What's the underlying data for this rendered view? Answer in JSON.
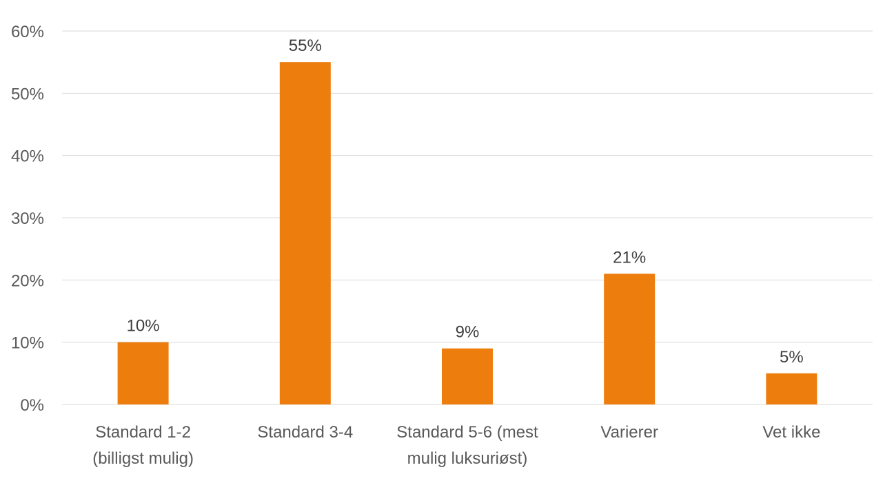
{
  "chart_data": {
    "type": "bar",
    "categories": [
      [
        "Standard 1-2",
        "(billigst mulig)"
      ],
      [
        "Standard 3-4"
      ],
      [
        "Standard 5-6 (mest",
        "mulig luksuriøst)"
      ],
      [
        "Varierer"
      ],
      [
        "Vet ikke"
      ]
    ],
    "values": [
      10,
      55,
      9,
      21,
      5
    ],
    "data_labels": [
      "10%",
      "55%",
      "9%",
      "21%",
      "5%"
    ],
    "ylim": [
      0,
      60
    ],
    "yticks": [
      0,
      10,
      20,
      30,
      40,
      50,
      60
    ],
    "ytick_labels": [
      "0%",
      "10%",
      "20%",
      "30%",
      "40%",
      "50%",
      "60%"
    ],
    "title": "",
    "xlabel": "",
    "ylabel": "",
    "grid": true,
    "legend": false,
    "colors": {
      "bar": "#ED7D0C",
      "grid": "#D9D9D9",
      "text": "#595959"
    }
  }
}
